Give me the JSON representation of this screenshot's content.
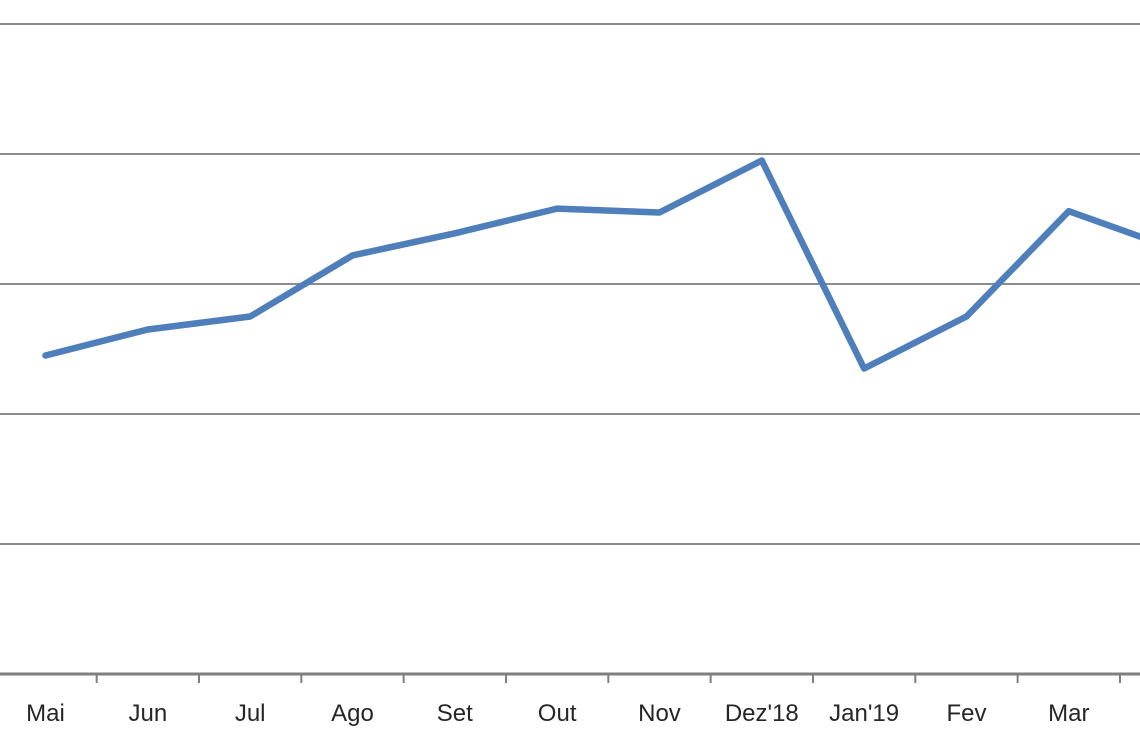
{
  "chart_data": {
    "type": "line",
    "title": "",
    "xlabel": "",
    "ylabel": "",
    "categories": [
      "Mai",
      "Jun",
      "Jul",
      "Ago",
      "Set",
      "Out",
      "Nov",
      "Dez'18",
      "Jan'19",
      "Fev",
      "Mar"
    ],
    "values": [
      2.45,
      2.65,
      2.75,
      3.22,
      3.39,
      3.58,
      3.55,
      3.95,
      2.35,
      2.75,
      3.56
    ],
    "next_point_offscreen_value": 3.28,
    "y_axis_tick_labels_visible": false,
    "y_value_units": "gridline units: no y-axis labels are visible, each horizontal gridline equals 1 unit above the x-axis baseline",
    "ylim": [
      0,
      5.18
    ],
    "gridline_units": [
      1,
      2,
      3,
      4,
      5
    ],
    "grid": "horizontal gridlines on, plain white background",
    "legend_position": "none",
    "series_count": 1
  },
  "colors": {
    "line": "#4E7FBB",
    "gridline": "#8C8C8C",
    "axis": "#7F7F7F",
    "tick": "#7F7F7F",
    "label_text": "#262626",
    "background": "#FFFFFF"
  }
}
